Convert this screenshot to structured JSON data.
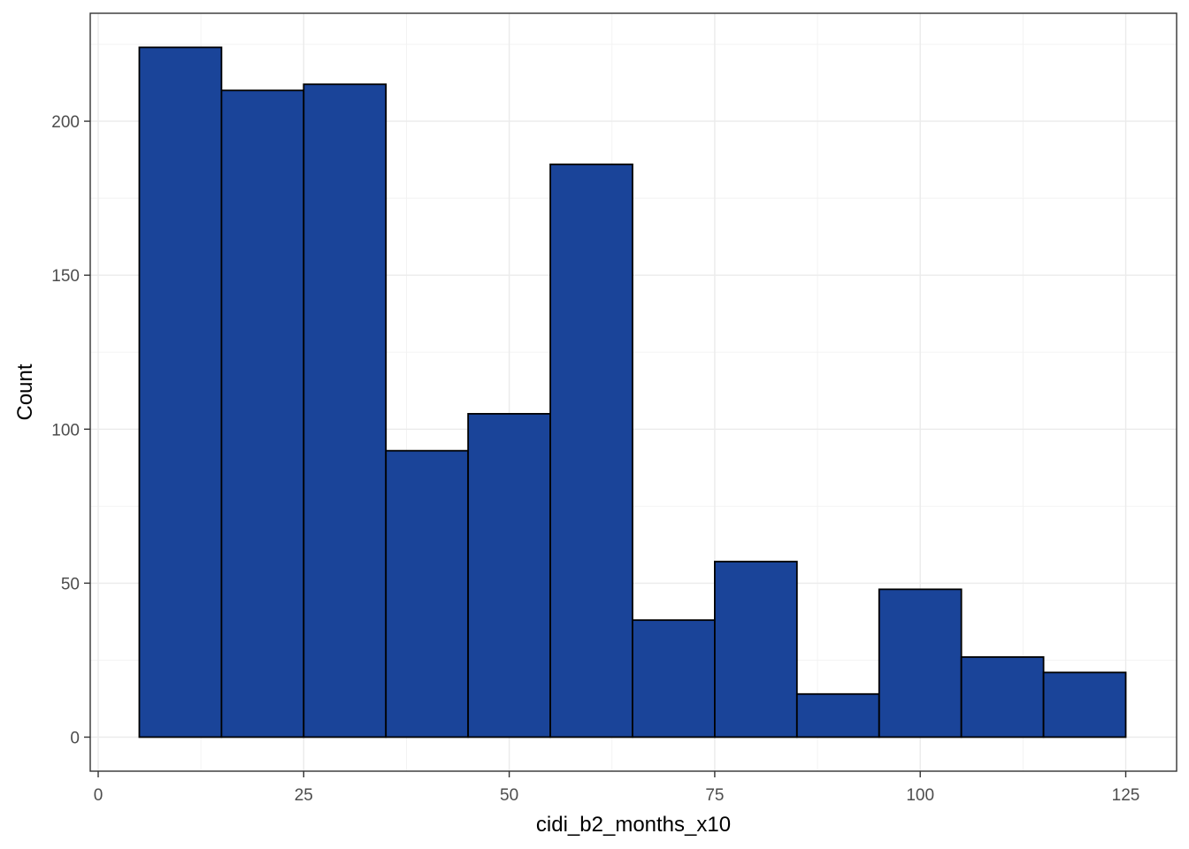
{
  "chart_data": {
    "type": "bar",
    "subtype": "histogram",
    "xlabel": "cidi_b2_months_x10",
    "ylabel": "Count",
    "xlim": [
      0,
      125
    ],
    "ylim": [
      0,
      224
    ],
    "x_ticks": [
      0,
      25,
      50,
      75,
      100,
      125
    ],
    "y_ticks": [
      0,
      50,
      100,
      150,
      200
    ],
    "grid": true,
    "bin_width": 10,
    "bins": [
      {
        "x0": 5,
        "x1": 15,
        "count": 224
      },
      {
        "x0": 15,
        "x1": 25,
        "count": 210
      },
      {
        "x0": 25,
        "x1": 35,
        "count": 212
      },
      {
        "x0": 35,
        "x1": 45,
        "count": 93
      },
      {
        "x0": 45,
        "x1": 55,
        "count": 105
      },
      {
        "x0": 55,
        "x1": 65,
        "count": 186
      },
      {
        "x0": 65,
        "x1": 75,
        "count": 38
      },
      {
        "x0": 75,
        "x1": 85,
        "count": 57
      },
      {
        "x0": 85,
        "x1": 95,
        "count": 14
      },
      {
        "x0": 95,
        "x1": 105,
        "count": 48
      },
      {
        "x0": 105,
        "x1": 115,
        "count": 26
      },
      {
        "x0": 115,
        "x1": 125,
        "count": 21
      }
    ],
    "colors": {
      "bar_fill": "#1a4499",
      "bar_stroke": "#000000"
    }
  }
}
